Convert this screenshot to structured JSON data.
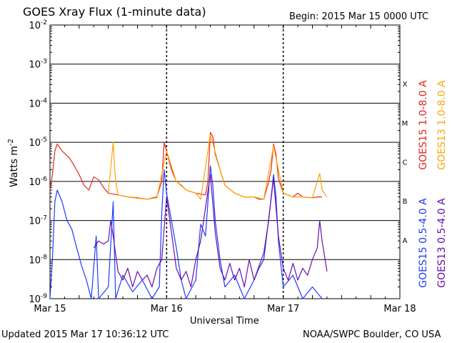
{
  "header": {
    "title": "GOES Xray Flux (1-minute data)",
    "begin": "Begin:  2015 Mar 15 0000 UTC"
  },
  "footer": {
    "updated": "Updated 2015 Mar 17 10:36:12 UTC",
    "credit": "NOAA/SWPC Boulder, CO USA"
  },
  "chart_data": {
    "type": "line",
    "title": "GOES Xray Flux (1-minute data)",
    "xlabel": "Universal Time",
    "ylabel": "Watts m-2",
    "yscale": "log",
    "ylim": [
      1e-09,
      0.01
    ],
    "xlim": [
      0,
      72
    ],
    "x_unit": "hours since 2015 Mar 15 0000 UTC",
    "x_ticks": [
      {
        "x": 0,
        "label": "Mar 15"
      },
      {
        "x": 24,
        "label": "Mar 16"
      },
      {
        "x": 48,
        "label": "Mar 17"
      },
      {
        "x": 72,
        "label": "Mar 18"
      }
    ],
    "y_ticks": [
      {
        "exp": -2
      },
      {
        "exp": -3
      },
      {
        "exp": -4
      },
      {
        "exp": -5
      },
      {
        "exp": -6
      },
      {
        "exp": -7
      },
      {
        "exp": -8
      },
      {
        "exp": -9
      }
    ],
    "flare_classes": [
      {
        "label": "X",
        "level": 0.0001
      },
      {
        "label": "M",
        "level": 1e-05
      },
      {
        "label": "C",
        "level": 1e-06
      },
      {
        "label": "B",
        "level": 1e-07
      },
      {
        "label": "A",
        "level": 1e-08
      }
    ],
    "grid": true,
    "legend_position": "right",
    "series": [
      {
        "name": "GOES15 1.0-8.0 A",
        "color": "#e8241c",
        "points": [
          [
            0,
            6e-07
          ],
          [
            0.5,
            1.5e-06
          ],
          [
            1,
            6e-06
          ],
          [
            1.5,
            9e-06
          ],
          [
            2.5,
            6e-06
          ],
          [
            4,
            4e-06
          ],
          [
            5,
            2.5e-06
          ],
          [
            6,
            1.5e-06
          ],
          [
            7,
            8e-07
          ],
          [
            8,
            6e-07
          ],
          [
            9,
            1.3e-06
          ],
          [
            10,
            1.1e-06
          ],
          [
            11,
            7e-07
          ],
          [
            12,
            5e-07
          ],
          [
            14,
            4.5e-07
          ],
          [
            16,
            4e-07
          ],
          [
            18,
            3.8e-07
          ],
          [
            20,
            3.5e-07
          ],
          [
            22,
            4e-07
          ],
          [
            23,
            1e-06
          ],
          [
            23.5,
            1e-05
          ],
          [
            24,
            6e-06
          ],
          [
            25,
            2e-06
          ],
          [
            26,
            1e-06
          ],
          [
            27,
            8e-07
          ],
          [
            28,
            6e-07
          ],
          [
            30,
            5e-07
          ],
          [
            32,
            4.5e-07
          ],
          [
            32.5,
            1e-06
          ],
          [
            33,
            1.8e-05
          ],
          [
            33.5,
            1.4e-05
          ],
          [
            34,
            5e-06
          ],
          [
            35,
            2e-06
          ],
          [
            36,
            8e-07
          ],
          [
            38,
            5e-07
          ],
          [
            40,
            4e-07
          ],
          [
            42,
            4e-07
          ],
          [
            43,
            3.5e-07
          ],
          [
            44,
            3.5e-07
          ],
          [
            45,
            1e-06
          ],
          [
            45.5,
            2e-06
          ],
          [
            46,
            9e-06
          ],
          [
            46.5,
            5e-06
          ],
          [
            47,
            1.2e-06
          ],
          [
            48,
            5e-07
          ],
          [
            50,
            4e-07
          ],
          [
            51,
            5e-07
          ],
          [
            52,
            4e-07
          ],
          [
            54,
            3.8e-07
          ],
          [
            55,
            4e-07
          ],
          [
            56,
            4e-07
          ]
        ]
      },
      {
        "name": "GOES13 1.0-8.0 A",
        "color": "#ffa500",
        "points": [
          [
            12,
            5e-07
          ],
          [
            13,
            1e-05
          ],
          [
            13.5,
            1e-06
          ],
          [
            14,
            4.5e-07
          ],
          [
            16,
            4e-07
          ],
          [
            18,
            3.7e-07
          ],
          [
            20,
            3.5e-07
          ],
          [
            22,
            3.8e-07
          ],
          [
            24,
            6e-06
          ],
          [
            26,
            1e-06
          ],
          [
            28,
            6e-07
          ],
          [
            30,
            5e-07
          ],
          [
            31,
            3.5e-07
          ],
          [
            33,
            1.6e-05
          ],
          [
            35,
            2e-06
          ],
          [
            36,
            8e-07
          ],
          [
            38,
            5e-07
          ],
          [
            40,
            4e-07
          ],
          [
            42,
            4e-07
          ],
          [
            44,
            3.5e-07
          ],
          [
            46,
            8e-06
          ],
          [
            48,
            5e-07
          ],
          [
            50,
            4e-07
          ],
          [
            52,
            4e-07
          ],
          [
            54,
            3.8e-07
          ],
          [
            55,
            1e-06
          ],
          [
            55.5,
            1.6e-06
          ],
          [
            56,
            6e-07
          ],
          [
            57,
            4e-07
          ]
        ]
      },
      {
        "name": "GOES15 0.5-4.0 A",
        "color": "#1a3cff",
        "points": [
          [
            0,
            1e-09
          ],
          [
            0.5,
            1e-08
          ],
          [
            1,
            3e-07
          ],
          [
            1.5,
            6e-07
          ],
          [
            2.5,
            3e-07
          ],
          [
            3.5,
            1e-07
          ],
          [
            4.5,
            6e-08
          ],
          [
            5.5,
            2e-08
          ],
          [
            6.5,
            7e-09
          ],
          [
            7.5,
            3e-09
          ],
          [
            8.5,
            1e-09
          ],
          [
            9.5,
            4e-08
          ],
          [
            10,
            1e-09
          ],
          [
            12,
            2e-09
          ],
          [
            13,
            3e-07
          ],
          [
            13.5,
            1e-09
          ],
          [
            15,
            4e-09
          ],
          [
            17,
            1.5e-09
          ],
          [
            19,
            3e-09
          ],
          [
            21,
            1e-09
          ],
          [
            22.5,
            2e-09
          ],
          [
            23,
            1.5e-07
          ],
          [
            23.5,
            2e-06
          ],
          [
            24,
            5e-07
          ],
          [
            25,
            1e-07
          ],
          [
            26,
            2e-08
          ],
          [
            27,
            3e-09
          ],
          [
            28,
            1e-09
          ],
          [
            30,
            3e-09
          ],
          [
            31,
            8e-08
          ],
          [
            32,
            4e-08
          ],
          [
            32.5,
            3e-07
          ],
          [
            33,
            2.5e-06
          ],
          [
            33.5,
            8e-07
          ],
          [
            34,
            1e-07
          ],
          [
            35,
            1e-08
          ],
          [
            36,
            2e-09
          ],
          [
            38,
            4e-09
          ],
          [
            40,
            1e-09
          ],
          [
            42,
            3e-09
          ],
          [
            44,
            1.5e-08
          ],
          [
            45,
            1e-07
          ],
          [
            46,
            1.5e-06
          ],
          [
            46.5,
            4e-07
          ],
          [
            47,
            3e-08
          ],
          [
            48,
            2e-09
          ],
          [
            50,
            4e-09
          ],
          [
            52,
            1e-09
          ],
          [
            54,
            2e-09
          ],
          [
            56,
            1e-09
          ]
        ]
      },
      {
        "name": "GOES13 0.5-4.0 A",
        "color": "#6a0dad",
        "points": [
          [
            9,
            2e-08
          ],
          [
            10,
            3e-08
          ],
          [
            11,
            2.5e-08
          ],
          [
            12,
            3e-08
          ],
          [
            12.5,
            1e-07
          ],
          [
            13,
            4e-08
          ],
          [
            14,
            5e-09
          ],
          [
            15,
            3e-09
          ],
          [
            16,
            6e-09
          ],
          [
            17,
            2e-09
          ],
          [
            18,
            5e-09
          ],
          [
            19,
            3e-09
          ],
          [
            20,
            4e-09
          ],
          [
            21,
            2e-09
          ],
          [
            22,
            6e-09
          ],
          [
            23,
            1e-08
          ],
          [
            24,
            4e-07
          ],
          [
            25,
            5e-08
          ],
          [
            26,
            6e-09
          ],
          [
            27,
            3e-09
          ],
          [
            28,
            5e-09
          ],
          [
            29,
            2e-09
          ],
          [
            30,
            1e-08
          ],
          [
            31,
            3e-08
          ],
          [
            33,
            1.5e-06
          ],
          [
            34,
            5e-08
          ],
          [
            35,
            6e-09
          ],
          [
            36,
            3e-09
          ],
          [
            37,
            8e-09
          ],
          [
            38,
            3e-09
          ],
          [
            39,
            6e-09
          ],
          [
            40,
            2e-09
          ],
          [
            41,
            1e-08
          ],
          [
            42,
            3e-09
          ],
          [
            43,
            6e-09
          ],
          [
            44,
            1e-08
          ],
          [
            46,
            1.2e-06
          ],
          [
            47,
            4e-08
          ],
          [
            48,
            6e-09
          ],
          [
            49,
            3e-09
          ],
          [
            50,
            8e-09
          ],
          [
            51,
            3e-09
          ],
          [
            52,
            6e-09
          ],
          [
            53,
            4e-09
          ],
          [
            54,
            1e-08
          ],
          [
            55,
            2e-08
          ],
          [
            55.5,
            1e-07
          ],
          [
            56,
            3e-08
          ],
          [
            57,
            5e-09
          ]
        ]
      }
    ]
  }
}
